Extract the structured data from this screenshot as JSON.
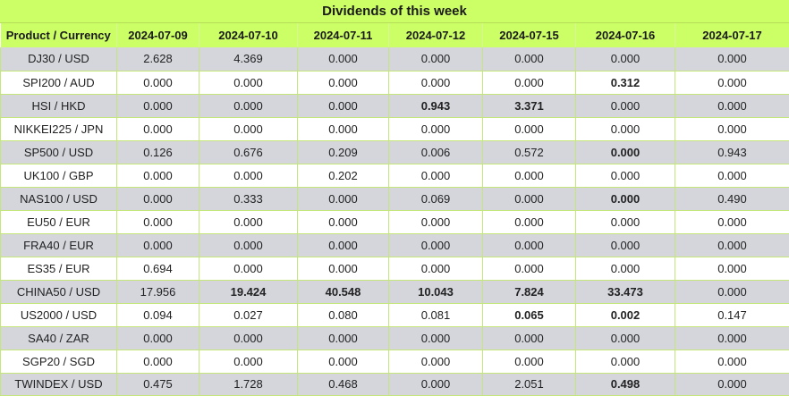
{
  "title": "Dividends of this week",
  "columns": [
    "Product / Currency",
    "2024-07-09",
    "2024-07-10",
    "2024-07-11",
    "2024-07-12",
    "2024-07-15",
    "2024-07-16",
    "2024-07-17"
  ],
  "rows": [
    {
      "product": "DJ30 / USD",
      "values": [
        "2.628",
        "4.369",
        "0.000",
        "0.000",
        "0.000",
        "0.000",
        "0.000"
      ],
      "bold": []
    },
    {
      "product": "SPI200 / AUD",
      "values": [
        "0.000",
        "0.000",
        "0.000",
        "0.000",
        "0.000",
        "0.312",
        "0.000"
      ],
      "bold": [
        5
      ]
    },
    {
      "product": "HSI / HKD",
      "values": [
        "0.000",
        "0.000",
        "0.000",
        "0.943",
        "3.371",
        "0.000",
        "0.000"
      ],
      "bold": [
        3,
        4
      ]
    },
    {
      "product": "NIKKEI225 / JPN",
      "values": [
        "0.000",
        "0.000",
        "0.000",
        "0.000",
        "0.000",
        "0.000",
        "0.000"
      ],
      "bold": []
    },
    {
      "product": "SP500 / USD",
      "values": [
        "0.126",
        "0.676",
        "0.209",
        "0.006",
        "0.572",
        "0.000",
        "0.943"
      ],
      "bold": [
        5
      ]
    },
    {
      "product": "UK100 / GBP",
      "values": [
        "0.000",
        "0.000",
        "0.202",
        "0.000",
        "0.000",
        "0.000",
        "0.000"
      ],
      "bold": []
    },
    {
      "product": "NAS100 / USD",
      "values": [
        "0.000",
        "0.333",
        "0.000",
        "0.069",
        "0.000",
        "0.000",
        "0.490"
      ],
      "bold": [
        5
      ]
    },
    {
      "product": "EU50 / EUR",
      "values": [
        "0.000",
        "0.000",
        "0.000",
        "0.000",
        "0.000",
        "0.000",
        "0.000"
      ],
      "bold": []
    },
    {
      "product": "FRA40 / EUR",
      "values": [
        "0.000",
        "0.000",
        "0.000",
        "0.000",
        "0.000",
        "0.000",
        "0.000"
      ],
      "bold": []
    },
    {
      "product": "ES35 / EUR",
      "values": [
        "0.694",
        "0.000",
        "0.000",
        "0.000",
        "0.000",
        "0.000",
        "0.000"
      ],
      "bold": []
    },
    {
      "product": "CHINA50 / USD",
      "values": [
        "17.956",
        "19.424",
        "40.548",
        "10.043",
        "7.824",
        "33.473",
        "0.000"
      ],
      "bold": [
        1,
        2,
        3,
        4,
        5
      ]
    },
    {
      "product": "US2000 / USD",
      "values": [
        "0.094",
        "0.027",
        "0.080",
        "0.081",
        "0.065",
        "0.002",
        "0.147"
      ],
      "bold": [
        4,
        5
      ]
    },
    {
      "product": "SA40 / ZAR",
      "values": [
        "0.000",
        "0.000",
        "0.000",
        "0.000",
        "0.000",
        "0.000",
        "0.000"
      ],
      "bold": []
    },
    {
      "product": "SGP20 / SGD",
      "values": [
        "0.000",
        "0.000",
        "0.000",
        "0.000",
        "0.000",
        "0.000",
        "0.000"
      ],
      "bold": []
    },
    {
      "product": "TWINDEX / USD",
      "values": [
        "0.475",
        "1.728",
        "0.468",
        "0.000",
        "2.051",
        "0.498",
        "0.000"
      ],
      "bold": [
        5
      ]
    }
  ],
  "colors": {
    "header_bg": "#ccff66",
    "row_odd_bg": "#d4d6dc",
    "row_even_bg": "#ffffff",
    "grid_line": "#c5e67a"
  }
}
